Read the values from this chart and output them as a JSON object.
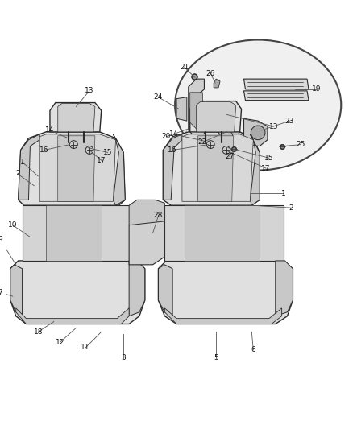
{
  "background_color": "#ffffff",
  "figure_width": 4.38,
  "figure_height": 5.33,
  "dpi": 100,
  "line_color": "#2a2a2a",
  "seat_fill": "#e0e0e0",
  "seat_panel_fill": "#c8c8c8",
  "seat_dark": "#b0b0b0",
  "seat_edge": "#2a2a2a",
  "oval_fill": "#f0f0f0",
  "oval_edge": "#444444",
  "label_fontsize": 6.5,
  "label_color": "#111111",
  "leader_color": "#555555",
  "leader_lw": 0.6
}
